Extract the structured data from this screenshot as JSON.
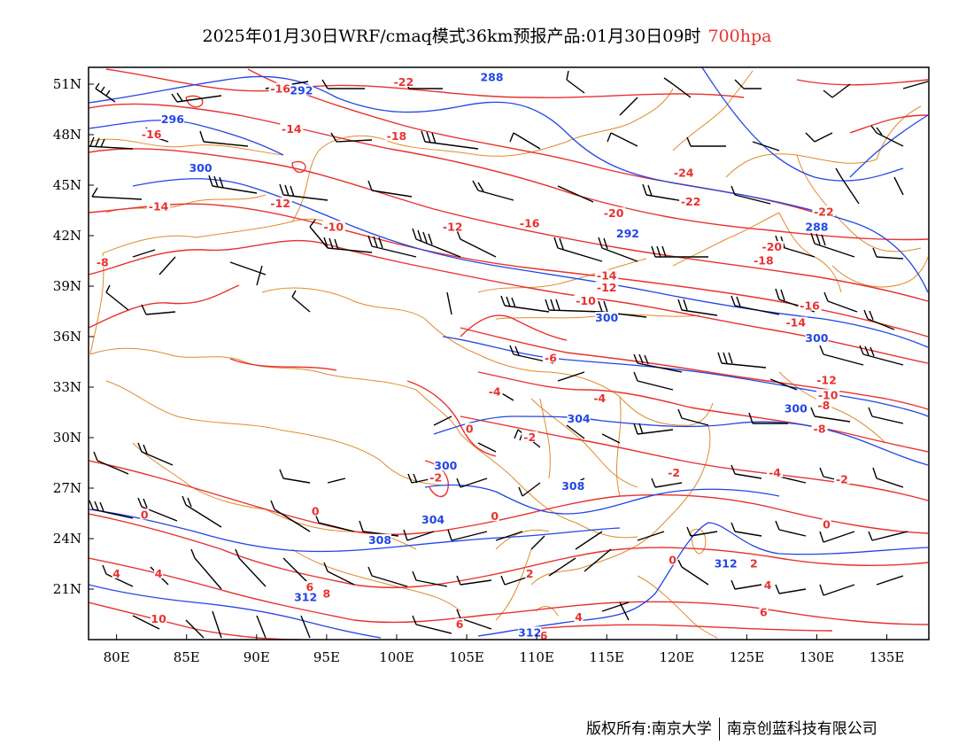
{
  "title": {
    "text": "2025年01月30日WRF/cmaq模式36km预报产品:01月30日09时",
    "level": "700hpa"
  },
  "footer": {
    "left": "版权所有:南京大学",
    "right": "南京创蓝科技有限公司"
  },
  "colors": {
    "temperature_contour": "#e8312f",
    "height_contour": "#2146e8",
    "boundaries": "#e08a2a",
    "wind_barbs": "#000000"
  },
  "map": {
    "projection": "lat-lon",
    "lon_range": [
      78,
      138
    ],
    "lat_range": [
      18,
      52
    ],
    "lon_ticks": [
      "80E",
      "85E",
      "90E",
      "95E",
      "100E",
      "105E",
      "110E",
      "115E",
      "120E",
      "125E",
      "130E",
      "135E"
    ],
    "lat_ticks": [
      "51N",
      "48N",
      "45N",
      "42N",
      "39N",
      "36N",
      "33N",
      "30N",
      "27N",
      "24N",
      "21N"
    ]
  },
  "temperature_labels": [
    {
      "text": "-22",
      "lon": 100.5,
      "lat": 51.0
    },
    {
      "text": "-16",
      "lon": 91.7,
      "lat": 50.6
    },
    {
      "text": "-14",
      "lon": 92.5,
      "lat": 48.2
    },
    {
      "text": "-18",
      "lon": 100.0,
      "lat": 47.8
    },
    {
      "text": "-16",
      "lon": 82.5,
      "lat": 47.9
    },
    {
      "text": "-14",
      "lon": 83.0,
      "lat": 43.6
    },
    {
      "text": "-12",
      "lon": 91.7,
      "lat": 43.8
    },
    {
      "text": "-8",
      "lon": 79.0,
      "lat": 40.3
    },
    {
      "text": "-10",
      "lon": 95.5,
      "lat": 42.4
    },
    {
      "text": "-12",
      "lon": 104.0,
      "lat": 42.4
    },
    {
      "text": "-16",
      "lon": 109.5,
      "lat": 42.6
    },
    {
      "text": "-20",
      "lon": 115.5,
      "lat": 43.2
    },
    {
      "text": "-24",
      "lon": 120.5,
      "lat": 45.6
    },
    {
      "text": "-22",
      "lon": 121.0,
      "lat": 43.9
    },
    {
      "text": "-22",
      "lon": 130.5,
      "lat": 43.3
    },
    {
      "text": "-20",
      "lon": 126.8,
      "lat": 41.2
    },
    {
      "text": "-18",
      "lon": 126.2,
      "lat": 40.4
    },
    {
      "text": "-16",
      "lon": 129.5,
      "lat": 37.7
    },
    {
      "text": "-14",
      "lon": 128.5,
      "lat": 36.7
    },
    {
      "text": "-14",
      "lon": 115.0,
      "lat": 39.5
    },
    {
      "text": "-12",
      "lon": 115.0,
      "lat": 38.8
    },
    {
      "text": "-10",
      "lon": 113.5,
      "lat": 38.0
    },
    {
      "text": "-6",
      "lon": 111.0,
      "lat": 34.6
    },
    {
      "text": "-4",
      "lon": 107.0,
      "lat": 32.6
    },
    {
      "text": "-4",
      "lon": 114.5,
      "lat": 32.2
    },
    {
      "text": "-2",
      "lon": 109.5,
      "lat": 29.9
    },
    {
      "text": "-2",
      "lon": 119.8,
      "lat": 27.8
    },
    {
      "text": "0",
      "lon": 105.2,
      "lat": 30.4
    },
    {
      "text": "-2",
      "lon": 102.8,
      "lat": 27.5
    },
    {
      "text": "0",
      "lon": 94.2,
      "lat": 25.5
    },
    {
      "text": "0",
      "lon": 107.0,
      "lat": 25.2
    },
    {
      "text": "0",
      "lon": 82.0,
      "lat": 25.3
    },
    {
      "text": "0",
      "lon": 130.7,
      "lat": 24.7
    },
    {
      "text": "0",
      "lon": 119.7,
      "lat": 22.6
    },
    {
      "text": "2",
      "lon": 125.5,
      "lat": 22.4
    },
    {
      "text": "2",
      "lon": 109.5,
      "lat": 21.8
    },
    {
      "text": "4",
      "lon": 80.0,
      "lat": 21.8
    },
    {
      "text": "4",
      "lon": 83.0,
      "lat": 21.8
    },
    {
      "text": "4",
      "lon": 113.0,
      "lat": 19.2
    },
    {
      "text": "4",
      "lon": 126.5,
      "lat": 21.1
    },
    {
      "text": "6",
      "lon": 93.8,
      "lat": 21.0
    },
    {
      "text": "6",
      "lon": 104.5,
      "lat": 18.8
    },
    {
      "text": "6",
      "lon": 110.5,
      "lat": 18.1
    },
    {
      "text": "6",
      "lon": 126.2,
      "lat": 19.5
    },
    {
      "text": "8",
      "lon": 95.0,
      "lat": 20.6
    },
    {
      "text": "10",
      "lon": 83.0,
      "lat": 19.1
    },
    {
      "text": "-4",
      "lon": 127.0,
      "lat": 27.8
    },
    {
      "text": "-2",
      "lon": 131.8,
      "lat": 27.4
    },
    {
      "text": "-8",
      "lon": 130.2,
      "lat": 30.4
    },
    {
      "text": "-10",
      "lon": 130.8,
      "lat": 32.4
    },
    {
      "text": "-8",
      "lon": 130.5,
      "lat": 31.8
    },
    {
      "text": "-12",
      "lon": 130.7,
      "lat": 33.3
    }
  ],
  "height_labels": [
    {
      "text": "292",
      "lon": 93.2,
      "lat": 50.5
    },
    {
      "text": "288",
      "lon": 106.8,
      "lat": 51.3
    },
    {
      "text": "296",
      "lon": 84.0,
      "lat": 48.8
    },
    {
      "text": "300",
      "lon": 86.0,
      "lat": 45.9
    },
    {
      "text": "292",
      "lon": 116.5,
      "lat": 42.0
    },
    {
      "text": "288",
      "lon": 130.0,
      "lat": 42.4
    },
    {
      "text": "300",
      "lon": 115.0,
      "lat": 37.0
    },
    {
      "text": "300",
      "lon": 130.0,
      "lat": 35.8
    },
    {
      "text": "300",
      "lon": 128.5,
      "lat": 31.6
    },
    {
      "text": "304",
      "lon": 113.0,
      "lat": 31.0
    },
    {
      "text": "300",
      "lon": 103.5,
      "lat": 28.2
    },
    {
      "text": "304",
      "lon": 102.6,
      "lat": 25.0
    },
    {
      "text": "308",
      "lon": 98.8,
      "lat": 23.8
    },
    {
      "text": "308",
      "lon": 112.6,
      "lat": 27.0
    },
    {
      "text": "312",
      "lon": 93.5,
      "lat": 20.4
    },
    {
      "text": "312",
      "lon": 109.5,
      "lat": 18.3
    },
    {
      "text": "312",
      "lon": 123.5,
      "lat": 22.4
    }
  ]
}
